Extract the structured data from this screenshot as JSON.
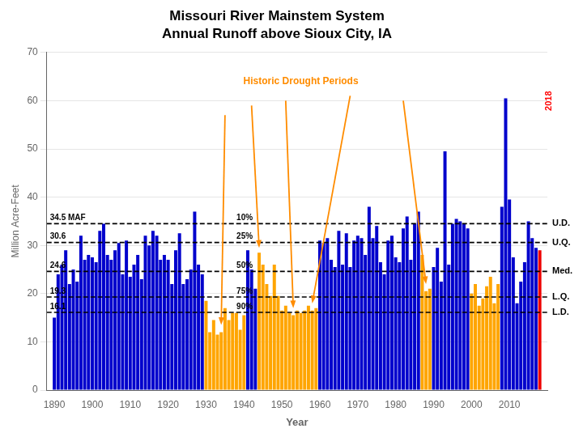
{
  "chart_data": {
    "type": "bar",
    "title": "Missouri River Mainstem System",
    "subtitle": "Annual Runoff above Sioux City, IA",
    "xlabel": "Year",
    "ylabel": "Million Acre-Feet",
    "x": [
      1890,
      1891,
      1892,
      1893,
      1894,
      1895,
      1896,
      1897,
      1898,
      1899,
      1900,
      1901,
      1902,
      1903,
      1904,
      1905,
      1906,
      1907,
      1908,
      1909,
      1910,
      1911,
      1912,
      1913,
      1914,
      1915,
      1916,
      1917,
      1918,
      1919,
      1920,
      1921,
      1922,
      1923,
      1924,
      1925,
      1926,
      1927,
      1928,
      1929,
      1930,
      1931,
      1932,
      1933,
      1934,
      1935,
      1936,
      1937,
      1938,
      1939,
      1940,
      1941,
      1942,
      1943,
      1944,
      1945,
      1946,
      1947,
      1948,
      1949,
      1950,
      1951,
      1952,
      1953,
      1954,
      1955,
      1956,
      1957,
      1958,
      1959,
      1960,
      1961,
      1962,
      1963,
      1964,
      1965,
      1966,
      1967,
      1968,
      1969,
      1970,
      1971,
      1972,
      1973,
      1974,
      1975,
      1976,
      1977,
      1978,
      1979,
      1980,
      1981,
      1982,
      1983,
      1984,
      1985,
      1986,
      1987,
      1988,
      1989,
      1990,
      1991,
      1992,
      1993,
      1994,
      1995,
      1996,
      1997,
      1998,
      1999,
      2000,
      2001,
      2002,
      2003,
      2004,
      2005,
      2006,
      2007,
      2008,
      2009,
      2010,
      2011,
      2012,
      2013,
      2014,
      2015,
      2016,
      2017,
      2018
    ],
    "values": [
      15.0,
      24.0,
      26.0,
      29.0,
      22.0,
      25.0,
      22.5,
      32.0,
      27.0,
      28.0,
      27.5,
      26.5,
      33.0,
      34.5,
      28.0,
      27.0,
      29.0,
      30.5,
      24.0,
      31.0,
      23.5,
      26.0,
      28.0,
      23.0,
      32.0,
      30.0,
      33.0,
      32.0,
      27.0,
      28.0,
      27.0,
      22.0,
      29.0,
      32.5,
      22.0,
      23.0,
      25.0,
      37.0,
      26.0,
      24.0,
      18.5,
      12.0,
      14.5,
      11.5,
      12.0,
      17.0,
      14.5,
      16.0,
      16.0,
      12.5,
      15.5,
      29.0,
      25.0,
      21.0,
      28.5,
      26.0,
      22.0,
      19.5,
      26.0,
      19.5,
      16.5,
      17.5,
      16.0,
      15.5,
      16.5,
      16.0,
      16.5,
      17.5,
      16.5,
      17.0,
      31.0,
      30.5,
      31.5,
      27.0,
      25.5,
      33.0,
      26.0,
      32.5,
      25.5,
      31.0,
      32.0,
      31.5,
      28.0,
      38.0,
      31.5,
      34.0,
      26.5,
      24.0,
      31.0,
      32.0,
      27.5,
      26.5,
      33.5,
      36.0,
      27.0,
      34.5,
      37.0,
      28.0,
      20.5,
      21.0,
      25.5,
      29.5,
      22.5,
      49.5,
      26.0,
      34.5,
      35.5,
      35.0,
      34.5,
      33.5,
      20.0,
      22.0,
      17.5,
      19.0,
      21.5,
      23.5,
      18.0,
      22.0,
      38.0,
      60.5,
      39.5,
      27.5,
      18.0,
      22.5,
      26.5,
      35.0,
      31.5,
      29.5,
      29.0
    ],
    "colors": [
      "#0000CC",
      "#0000CC",
      "#0000CC",
      "#0000CC",
      "#0000CC",
      "#0000CC",
      "#0000CC",
      "#0000CC",
      "#0000CC",
      "#0000CC",
      "#0000CC",
      "#0000CC",
      "#0000CC",
      "#0000CC",
      "#0000CC",
      "#0000CC",
      "#0000CC",
      "#0000CC",
      "#0000CC",
      "#0000CC",
      "#0000CC",
      "#0000CC",
      "#0000CC",
      "#0000CC",
      "#0000CC",
      "#0000CC",
      "#0000CC",
      "#0000CC",
      "#0000CC",
      "#0000CC",
      "#0000CC",
      "#0000CC",
      "#0000CC",
      "#0000CC",
      "#0000CC",
      "#0000CC",
      "#0000CC",
      "#0000CC",
      "#0000CC",
      "#0000CC",
      "#FFA500",
      "#FFA500",
      "#FFA500",
      "#FFA500",
      "#FFA500",
      "#FFA500",
      "#FFA500",
      "#FFA500",
      "#FFA500",
      "#FFA500",
      "#FFA500",
      "#0000CC",
      "#0000CC",
      "#0000CC",
      "#FFA500",
      "#FFA500",
      "#FFA500",
      "#FFA500",
      "#FFA500",
      "#FFA500",
      "#FFA500",
      "#FFA500",
      "#FFA500",
      "#FFA500",
      "#FFA500",
      "#FFA500",
      "#FFA500",
      "#FFA500",
      "#FFA500",
      "#FFA500",
      "#0000CC",
      "#0000CC",
      "#0000CC",
      "#0000CC",
      "#0000CC",
      "#0000CC",
      "#0000CC",
      "#0000CC",
      "#0000CC",
      "#0000CC",
      "#0000CC",
      "#0000CC",
      "#0000CC",
      "#0000CC",
      "#0000CC",
      "#0000CC",
      "#0000CC",
      "#0000CC",
      "#0000CC",
      "#0000CC",
      "#0000CC",
      "#0000CC",
      "#0000CC",
      "#0000CC",
      "#0000CC",
      "#0000CC",
      "#0000CC",
      "#FFA500",
      "#FFA500",
      "#FFA500",
      "#0000CC",
      "#0000CC",
      "#0000CC",
      "#0000CC",
      "#0000CC",
      "#0000CC",
      "#0000CC",
      "#0000CC",
      "#0000CC",
      "#0000CC",
      "#FFA500",
      "#FFA500",
      "#FFA500",
      "#FFA500",
      "#FFA500",
      "#FFA500",
      "#FFA500",
      "#FFA500",
      "#0000CC",
      "#0000CC",
      "#0000CC",
      "#0000CC",
      "#0000CC",
      "#0000CC",
      "#0000CC",
      "#0000CC",
      "#0000CC",
      "#0000CC",
      "#EE0000"
    ],
    "xlim": [
      1888,
      2020
    ],
    "xticks": [
      1890,
      1900,
      1910,
      1920,
      1930,
      1940,
      1950,
      1960,
      1970,
      1980,
      1990,
      2000,
      2010
    ],
    "ylim": [
      0,
      70
    ],
    "yticks": [
      0,
      10,
      20,
      30,
      40,
      50,
      60,
      70
    ],
    "grid": true,
    "reference_lines": [
      {
        "value": 34.5,
        "label_left": "34.5 MAF",
        "label_mid": "10%",
        "label_right": "U.D.",
        "color": "black",
        "line_style": "dashed"
      },
      {
        "value": 30.6,
        "label_left": "30.6",
        "label_mid": "25%",
        "label_right": "U.Q.",
        "color": "black",
        "line_style": "dashed"
      },
      {
        "value": 24.6,
        "label_left": "24.6",
        "label_mid": "50%",
        "label_right": "Med.",
        "color": "black",
        "line_style": "dashed"
      },
      {
        "value": 19.3,
        "label_left": "19.3",
        "label_mid": "75%",
        "label_right": "L.Q.",
        "color": "black",
        "line_style": "dashed"
      },
      {
        "value": 16.1,
        "label_left": "16.1",
        "label_mid": "90%",
        "label_right": "L.D.",
        "color": "black",
        "line_style": "dashed"
      }
    ],
    "annotations": [
      {
        "text": "Historic Drought Periods",
        "x": 1955,
        "y": 64,
        "color": "darkorange",
        "arrows": [
          {
            "from": [
              1935,
              57
            ],
            "to": [
              1934,
              13.5
            ]
          },
          {
            "from": [
              1942,
              59
            ],
            "to": [
              1944,
              29.5
            ]
          },
          {
            "from": [
              1951,
              60
            ],
            "to": [
              1953,
              17.0
            ]
          },
          {
            "from": [
              1968,
              61
            ],
            "to": [
              1958,
              18.0
            ]
          },
          {
            "from": [
              1982,
              60
            ],
            "to": [
              1988,
              22.0
            ]
          }
        ]
      },
      {
        "text": "2018",
        "x": 2019.2,
        "y": 62,
        "color": "red",
        "rotated": true
      }
    ]
  }
}
